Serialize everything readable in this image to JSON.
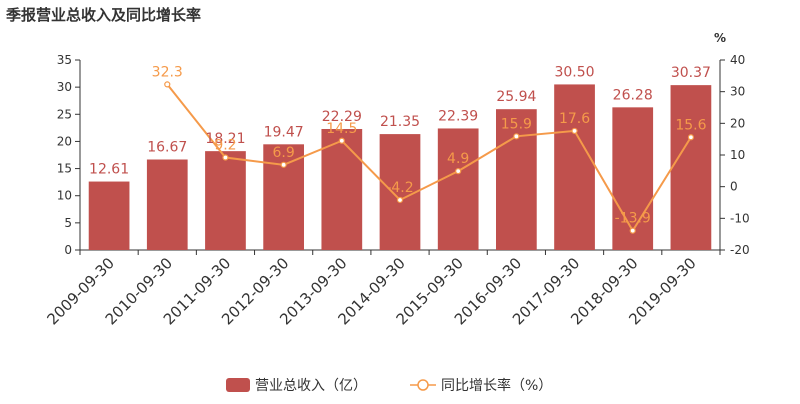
{
  "chart_data": {
    "type": "bar",
    "title": "季报营业总收入及同比增长率",
    "categories": [
      "2009-09-30",
      "2010-09-30",
      "2011-09-30",
      "2012-09-30",
      "2013-09-30",
      "2014-09-30",
      "2015-09-30",
      "2016-09-30",
      "2017-09-30",
      "2018-09-30",
      "2019-09-30"
    ],
    "series": [
      {
        "name": "营业总收入（亿）",
        "type": "bar",
        "axis": "left",
        "values": [
          12.61,
          16.67,
          18.21,
          19.47,
          22.29,
          21.35,
          22.39,
          25.94,
          30.5,
          26.28,
          30.37
        ],
        "labels": [
          "12.61",
          "16.67",
          "18.21",
          "19.47",
          "22.29",
          "21.35",
          "22.39",
          "25.94",
          "30.50",
          "26.28",
          "30.37"
        ],
        "color": "#c0504d"
      },
      {
        "name": "同比增长率（%）",
        "type": "line",
        "axis": "right",
        "values": [
          null,
          32.3,
          9.2,
          6.9,
          14.5,
          -4.2,
          4.9,
          15.9,
          17.6,
          -13.9,
          15.6
        ],
        "labels": [
          "",
          "32.3",
          "9.2",
          "6.9",
          "14.5",
          "-4.2",
          "4.9",
          "15.9",
          "17.6",
          "-13.9",
          "15.6"
        ],
        "color": "#f59a4a"
      }
    ],
    "y_left": {
      "min": 0,
      "max": 35,
      "ticks": [
        "0",
        "5",
        "10",
        "15",
        "20",
        "25",
        "30",
        "35"
      ]
    },
    "y_right": {
      "min": -20,
      "max": 40,
      "unit": "%",
      "ticks": [
        "-20",
        "-10",
        "0",
        "10",
        "20",
        "30",
        "40"
      ]
    },
    "legend": {
      "position": "bottom-center",
      "items": [
        "营业总收入（亿）",
        "同比增长率（%）"
      ]
    },
    "grid": false
  }
}
